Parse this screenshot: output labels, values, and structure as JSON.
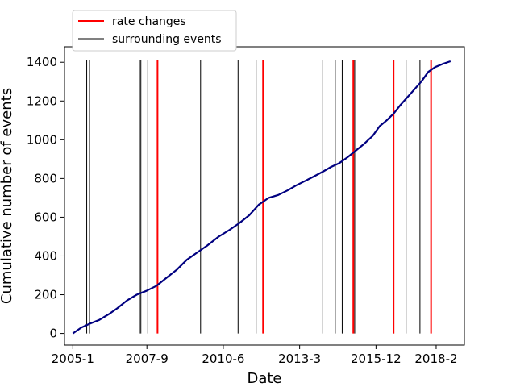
{
  "chart_data": {
    "type": "line",
    "title": "",
    "xlabel": "Date",
    "ylabel": "Cumulative number of events",
    "x_ticks": [
      {
        "label": "2005-1",
        "t": 2005.0
      },
      {
        "label": "2007-9",
        "t": 2007.667
      },
      {
        "label": "2010-6",
        "t": 2010.417
      },
      {
        "label": "2013-3",
        "t": 2013.167
      },
      {
        "label": "2015-12",
        "t": 2015.917
      },
      {
        "label": "2018-2",
        "t": 2018.083
      }
    ],
    "y_ticks": [
      0,
      200,
      400,
      600,
      800,
      1000,
      1200,
      1400
    ],
    "xlim": [
      2004.7,
      2019.1
    ],
    "ylim": [
      -60,
      1480
    ],
    "grid": false,
    "legend": {
      "placement": "top-left",
      "entries": [
        {
          "name": "rate changes",
          "color": "#ff0000"
        },
        {
          "name": "surrounding events",
          "color": "#000000"
        }
      ]
    },
    "series": [
      {
        "name": "",
        "color": "#000080",
        "x": [
          2005.0,
          2005.3,
          2005.6,
          2005.95,
          2006.3,
          2006.6,
          2006.95,
          2007.3,
          2007.65,
          2008.0,
          2008.4,
          2008.75,
          2009.1,
          2009.45,
          2009.85,
          2010.25,
          2010.65,
          2011.0,
          2011.35,
          2011.7,
          2012.05,
          2012.4,
          2012.75,
          2013.05,
          2013.4,
          2013.7,
          2014.0,
          2014.3,
          2014.6,
          2014.9,
          2015.2,
          2015.5,
          2015.8,
          2016.05,
          2016.3,
          2016.55,
          2016.8,
          2017.05,
          2017.3,
          2017.55,
          2017.8,
          2018.05,
          2018.3,
          2018.6
        ],
        "y": [
          0,
          30,
          50,
          70,
          100,
          130,
          170,
          200,
          220,
          245,
          290,
          330,
          380,
          415,
          455,
          500,
          535,
          570,
          610,
          665,
          700,
          715,
          740,
          765,
          790,
          812,
          835,
          860,
          880,
          910,
          945,
          980,
          1020,
          1070,
          1100,
          1135,
          1180,
          1220,
          1260,
          1300,
          1350,
          1375,
          1390,
          1405
        ]
      }
    ],
    "rate_changes": [
      2008.05,
      2011.85,
      2015.1,
      2016.55,
      2017.9
    ],
    "surrounding_events": [
      2005.5,
      2005.6,
      2006.95,
      2007.4,
      2007.45,
      2007.7,
      2009.6,
      2010.95,
      2011.45,
      2011.6,
      2014.0,
      2014.45,
      2014.7,
      2015.05,
      2015.15,
      2016.55,
      2017.0,
      2017.5
    ]
  }
}
